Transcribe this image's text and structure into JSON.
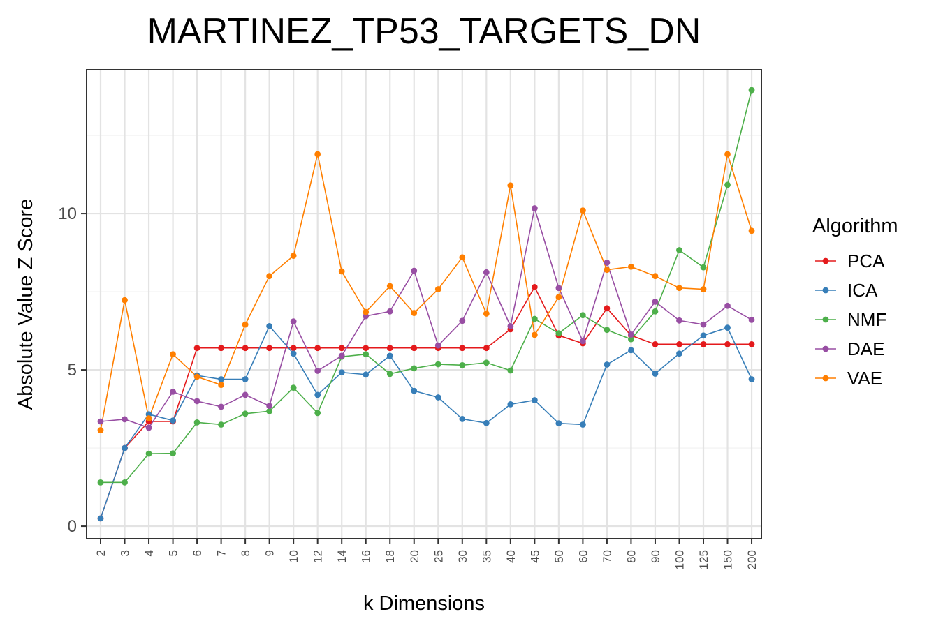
{
  "chart_data": {
    "type": "line",
    "title": "MARTINEZ_TP53_TARGETS_DN",
    "xlabel": "k Dimensions",
    "ylabel": "Absolute Value Z Score",
    "ylim": [
      -0.4,
      14.6
    ],
    "yticks": [
      0,
      5,
      10
    ],
    "grid": true,
    "legend": {
      "title": "Algorithm",
      "placement": "right"
    },
    "x": [
      "2",
      "3",
      "4",
      "5",
      "6",
      "7",
      "8",
      "9",
      "10",
      "12",
      "14",
      "16",
      "18",
      "20",
      "25",
      "30",
      "35",
      "40",
      "45",
      "50",
      "60",
      "70",
      "80",
      "90",
      "100",
      "125",
      "150",
      "200"
    ],
    "series": [
      {
        "name": "PCA",
        "color": "#e41a1c",
        "values": [
          0.25,
          2.5,
          3.35,
          3.35,
          5.7,
          5.7,
          5.7,
          5.7,
          5.7,
          5.7,
          5.7,
          5.7,
          5.7,
          5.7,
          5.7,
          5.7,
          5.7,
          6.3,
          7.65,
          6.1,
          5.85,
          6.97,
          6.1,
          5.82,
          5.82,
          5.82,
          5.82,
          5.82
        ]
      },
      {
        "name": "ICA",
        "color": "#377eb8",
        "values": [
          0.25,
          2.5,
          3.58,
          3.38,
          4.82,
          4.7,
          4.7,
          6.4,
          5.52,
          4.2,
          4.92,
          4.85,
          5.45,
          4.33,
          4.12,
          3.43,
          3.3,
          3.9,
          4.03,
          3.29,
          3.25,
          5.17,
          5.63,
          4.88,
          5.52,
          6.1,
          6.35,
          4.7
        ]
      },
      {
        "name": "NMF",
        "color": "#4daf4a",
        "values": [
          1.4,
          1.4,
          2.32,
          2.33,
          3.32,
          3.25,
          3.6,
          3.68,
          4.43,
          3.62,
          5.42,
          5.5,
          4.87,
          5.05,
          5.18,
          5.15,
          5.23,
          4.98,
          6.63,
          6.17,
          6.75,
          6.28,
          5.98,
          6.87,
          8.83,
          8.28,
          10.92,
          13.95
        ]
      },
      {
        "name": "DAE",
        "color": "#984ea3",
        "values": [
          3.35,
          3.42,
          3.15,
          4.3,
          4.0,
          3.82,
          4.2,
          3.85,
          6.55,
          4.97,
          5.45,
          6.72,
          6.87,
          8.17,
          5.78,
          6.57,
          8.12,
          6.4,
          10.17,
          7.62,
          5.92,
          8.43,
          6.13,
          7.18,
          6.58,
          6.45,
          7.05,
          6.6
        ]
      },
      {
        "name": "VAE",
        "color": "#ff7f00",
        "values": [
          3.07,
          7.23,
          3.45,
          5.5,
          4.78,
          4.52,
          6.45,
          8.0,
          8.65,
          11.9,
          8.15,
          6.85,
          7.68,
          6.82,
          7.58,
          8.6,
          6.8,
          10.9,
          6.12,
          7.33,
          10.1,
          8.2,
          8.3,
          8.0,
          7.62,
          7.58,
          11.9,
          9.45
        ]
      }
    ]
  }
}
